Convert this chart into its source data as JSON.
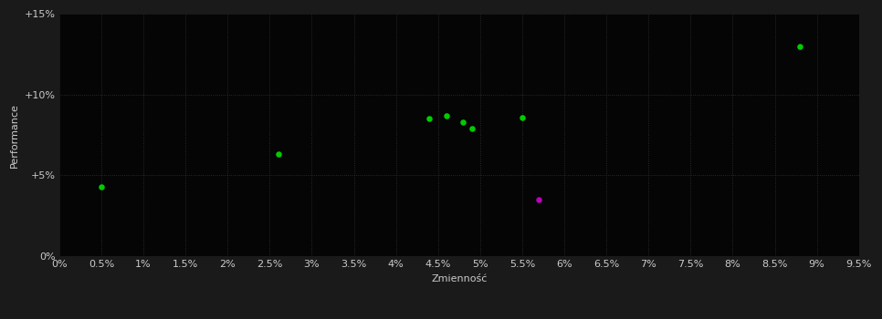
{
  "xlabel": "Zmienność",
  "ylabel": "Performance",
  "outer_bg_color": "#1a1a1a",
  "plot_bg_color": "#050505",
  "grid_color": "#333333",
  "text_color": "#cccccc",
  "xlim": [
    0,
    0.095
  ],
  "ylim": [
    0,
    0.15
  ],
  "xticks": [
    0.0,
    0.005,
    0.01,
    0.015,
    0.02,
    0.025,
    0.03,
    0.035,
    0.04,
    0.045,
    0.05,
    0.055,
    0.06,
    0.065,
    0.07,
    0.075,
    0.08,
    0.085,
    0.09,
    0.095
  ],
  "xtick_labels": [
    "0%",
    "0.5%",
    "1%",
    "1.5%",
    "2%",
    "2.5%",
    "3%",
    "3.5%",
    "4%",
    "4.5%",
    "5%",
    "5.5%",
    "6%",
    "6.5%",
    "7%",
    "7.5%",
    "8%",
    "8.5%",
    "9%",
    "9.5%"
  ],
  "yticks": [
    0.0,
    0.05,
    0.1,
    0.15
  ],
  "ytick_labels": [
    "0%",
    "+5%",
    "+10%",
    "+15%"
  ],
  "green_points": [
    [
      0.005,
      0.043
    ],
    [
      0.026,
      0.063
    ],
    [
      0.044,
      0.085
    ],
    [
      0.046,
      0.087
    ],
    [
      0.048,
      0.083
    ],
    [
      0.049,
      0.079
    ],
    [
      0.055,
      0.086
    ],
    [
      0.088,
      0.13
    ]
  ],
  "magenta_points": [
    [
      0.057,
      0.035
    ]
  ],
  "green_color": "#00cc00",
  "magenta_color": "#bb00bb",
  "marker_size": 22,
  "font_size": 8,
  "label_font_size": 8
}
